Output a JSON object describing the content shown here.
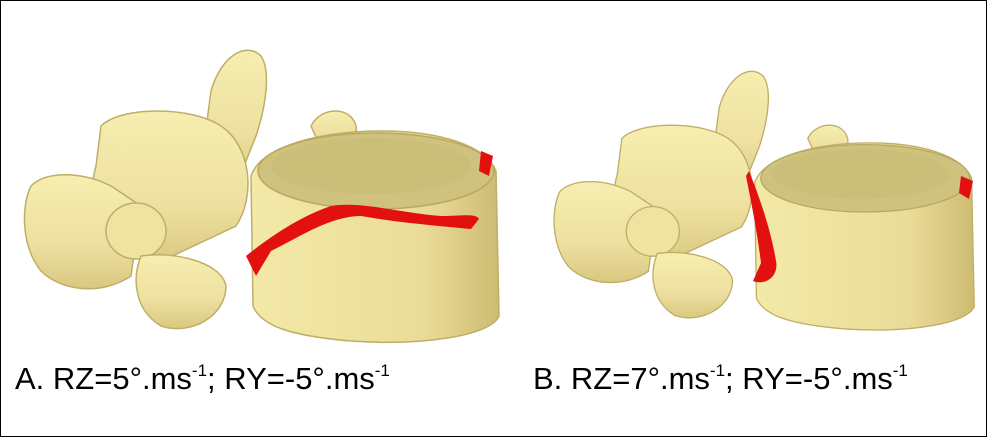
{
  "panels": [
    {
      "caption": [
        "A. RZ=5°.ms",
        "-1",
        "; RY=-5°.ms",
        "-1"
      ]
    },
    {
      "caption": [
        "B. RZ=7°.ms",
        "-1",
        "; RY=-5°.ms",
        "-1"
      ]
    }
  ]
}
